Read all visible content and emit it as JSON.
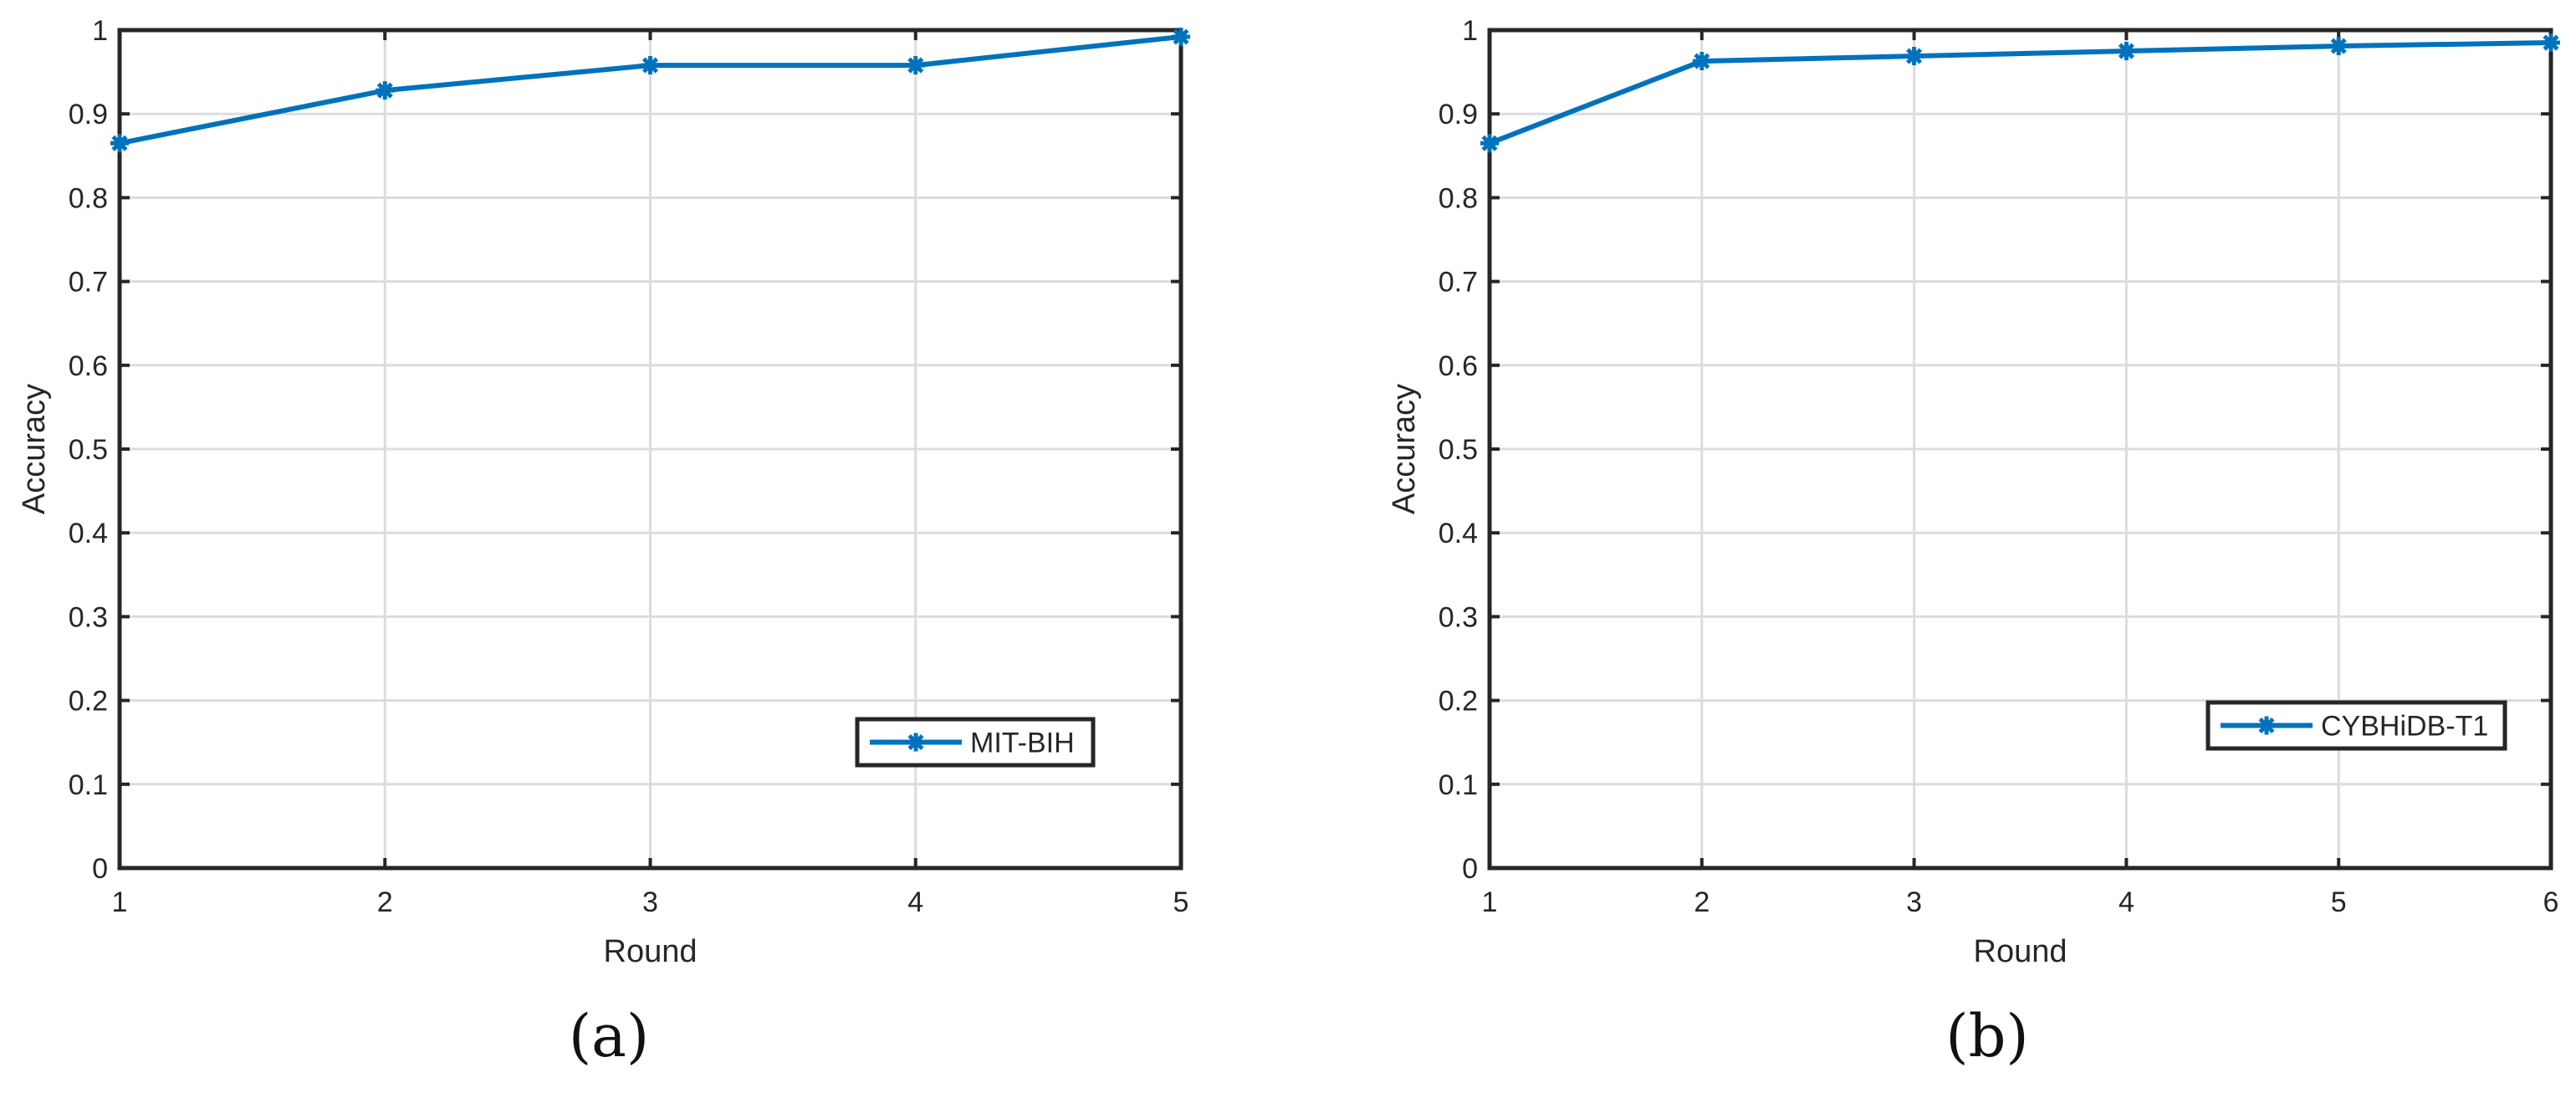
{
  "chart_data": [
    {
      "type": "line",
      "panel_label": "(a)",
      "xlabel": "Round",
      "ylabel": "Accuracy",
      "xlim": [
        1,
        5
      ],
      "ylim": [
        0,
        1
      ],
      "xticks": [
        "1",
        "2",
        "3",
        "4",
        "5"
      ],
      "yticks": [
        "0",
        "0.1",
        "0.2",
        "0.3",
        "0.4",
        "0.5",
        "0.6",
        "0.7",
        "0.8",
        "0.9",
        "1"
      ],
      "grid": true,
      "legend_position": "bottom-right",
      "series": [
        {
          "name": "MIT-BIH",
          "color": "#0072BD",
          "marker": "asterisk",
          "x": [
            1,
            2,
            3,
            4,
            5
          ],
          "y": [
            0.865,
            0.928,
            0.958,
            0.958,
            0.992
          ]
        }
      ]
    },
    {
      "type": "line",
      "panel_label": "(b)",
      "xlabel": "Round",
      "ylabel": "Accuracy",
      "xlim": [
        1,
        6
      ],
      "ylim": [
        0,
        1
      ],
      "xticks": [
        "1",
        "2",
        "3",
        "4",
        "5",
        "6"
      ],
      "yticks": [
        "0",
        "0.1",
        "0.2",
        "0.3",
        "0.4",
        "0.5",
        "0.6",
        "0.7",
        "0.8",
        "0.9",
        "1"
      ],
      "grid": true,
      "legend_position": "bottom-right",
      "series": [
        {
          "name": "CYBHiDB-T1",
          "color": "#0072BD",
          "marker": "asterisk",
          "x": [
            1,
            2,
            3,
            4,
            5,
            6
          ],
          "y": [
            0.865,
            0.963,
            0.969,
            0.975,
            0.981,
            0.985
          ]
        }
      ]
    }
  ]
}
